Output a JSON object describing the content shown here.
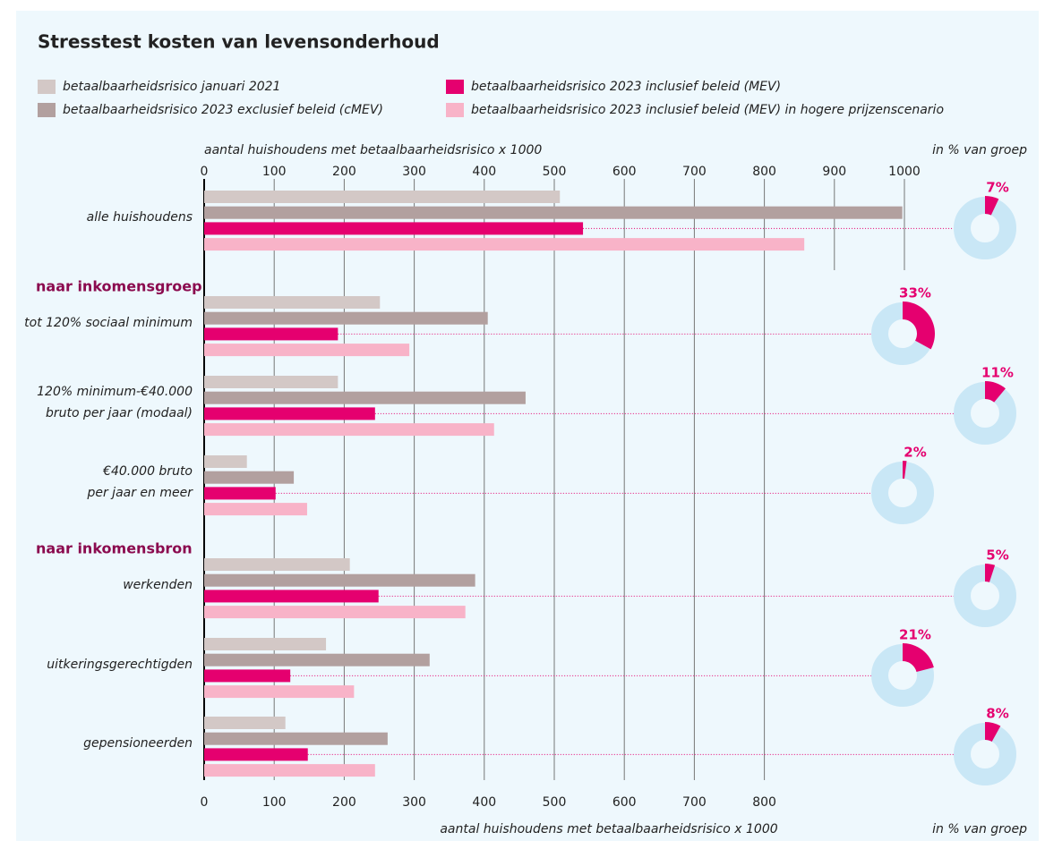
{
  "chart_data": {
    "type": "bar",
    "orientation": "horizontal",
    "title": "Stresstest kosten van levensonderhoud",
    "x_label": "aantal huishoudens met betaalbaarheidsrisico x 1000",
    "share_label": "in % van groep",
    "categories": [
      [
        "alle huishoudens"
      ],
      [
        "tot 120% sociaal minimum"
      ],
      [
        "120% minimum-€40.000",
        "bruto per jaar (modaal)"
      ],
      [
        "€40.000 bruto",
        "per jaar en meer"
      ],
      [
        "werkenden"
      ],
      [
        "uitkeringsgerechtigden"
      ],
      [
        "gepensioneerden"
      ]
    ],
    "group_labels": [
      {
        "label": "naar inkomensgroep",
        "before": 1
      },
      {
        "label": "naar inkomensbron",
        "before": 4
      }
    ],
    "series": [
      {
        "name": "betaalbaarheidsrisico januari 2021",
        "color": "#d3c8c6",
        "values": [
          508,
          251,
          191,
          61,
          208,
          174,
          116
        ]
      },
      {
        "name": "betaalbaarheidsrisico 2023 exclusief beleid (cMEV)",
        "color": "#b2a09f",
        "values": [
          997,
          405,
          459,
          128,
          387,
          322,
          262
        ]
      },
      {
        "name": "betaalbaarheidsrisico 2023 inclusief beleid (MEV)",
        "color": "#e5006f",
        "values": [
          541,
          191,
          244,
          102,
          249,
          123,
          148
        ]
      },
      {
        "name": "betaalbaarheidsrisico 2023 inclusief beleid (MEV) in hogere prijzenscenario",
        "color": "#f8b3c8",
        "values": [
          857,
          293,
          414,
          147,
          373,
          214,
          244
        ]
      }
    ],
    "share": {
      "values": [
        7,
        33,
        11,
        2,
        5,
        21,
        8
      ],
      "value_labels": [
        "7%",
        "33%",
        "11%",
        "2%",
        "5%",
        "21%",
        "8%"
      ],
      "color": "#e5006f",
      "ring_color": "#c9e7f6"
    },
    "xlim": [
      0,
      1000
    ],
    "xticks": [
      0,
      100,
      200,
      300,
      400,
      500,
      600,
      700,
      800,
      900,
      1000
    ],
    "xticks_bottom": [
      0,
      100,
      200,
      300,
      400,
      500,
      600,
      700,
      800
    ],
    "grid": true
  }
}
